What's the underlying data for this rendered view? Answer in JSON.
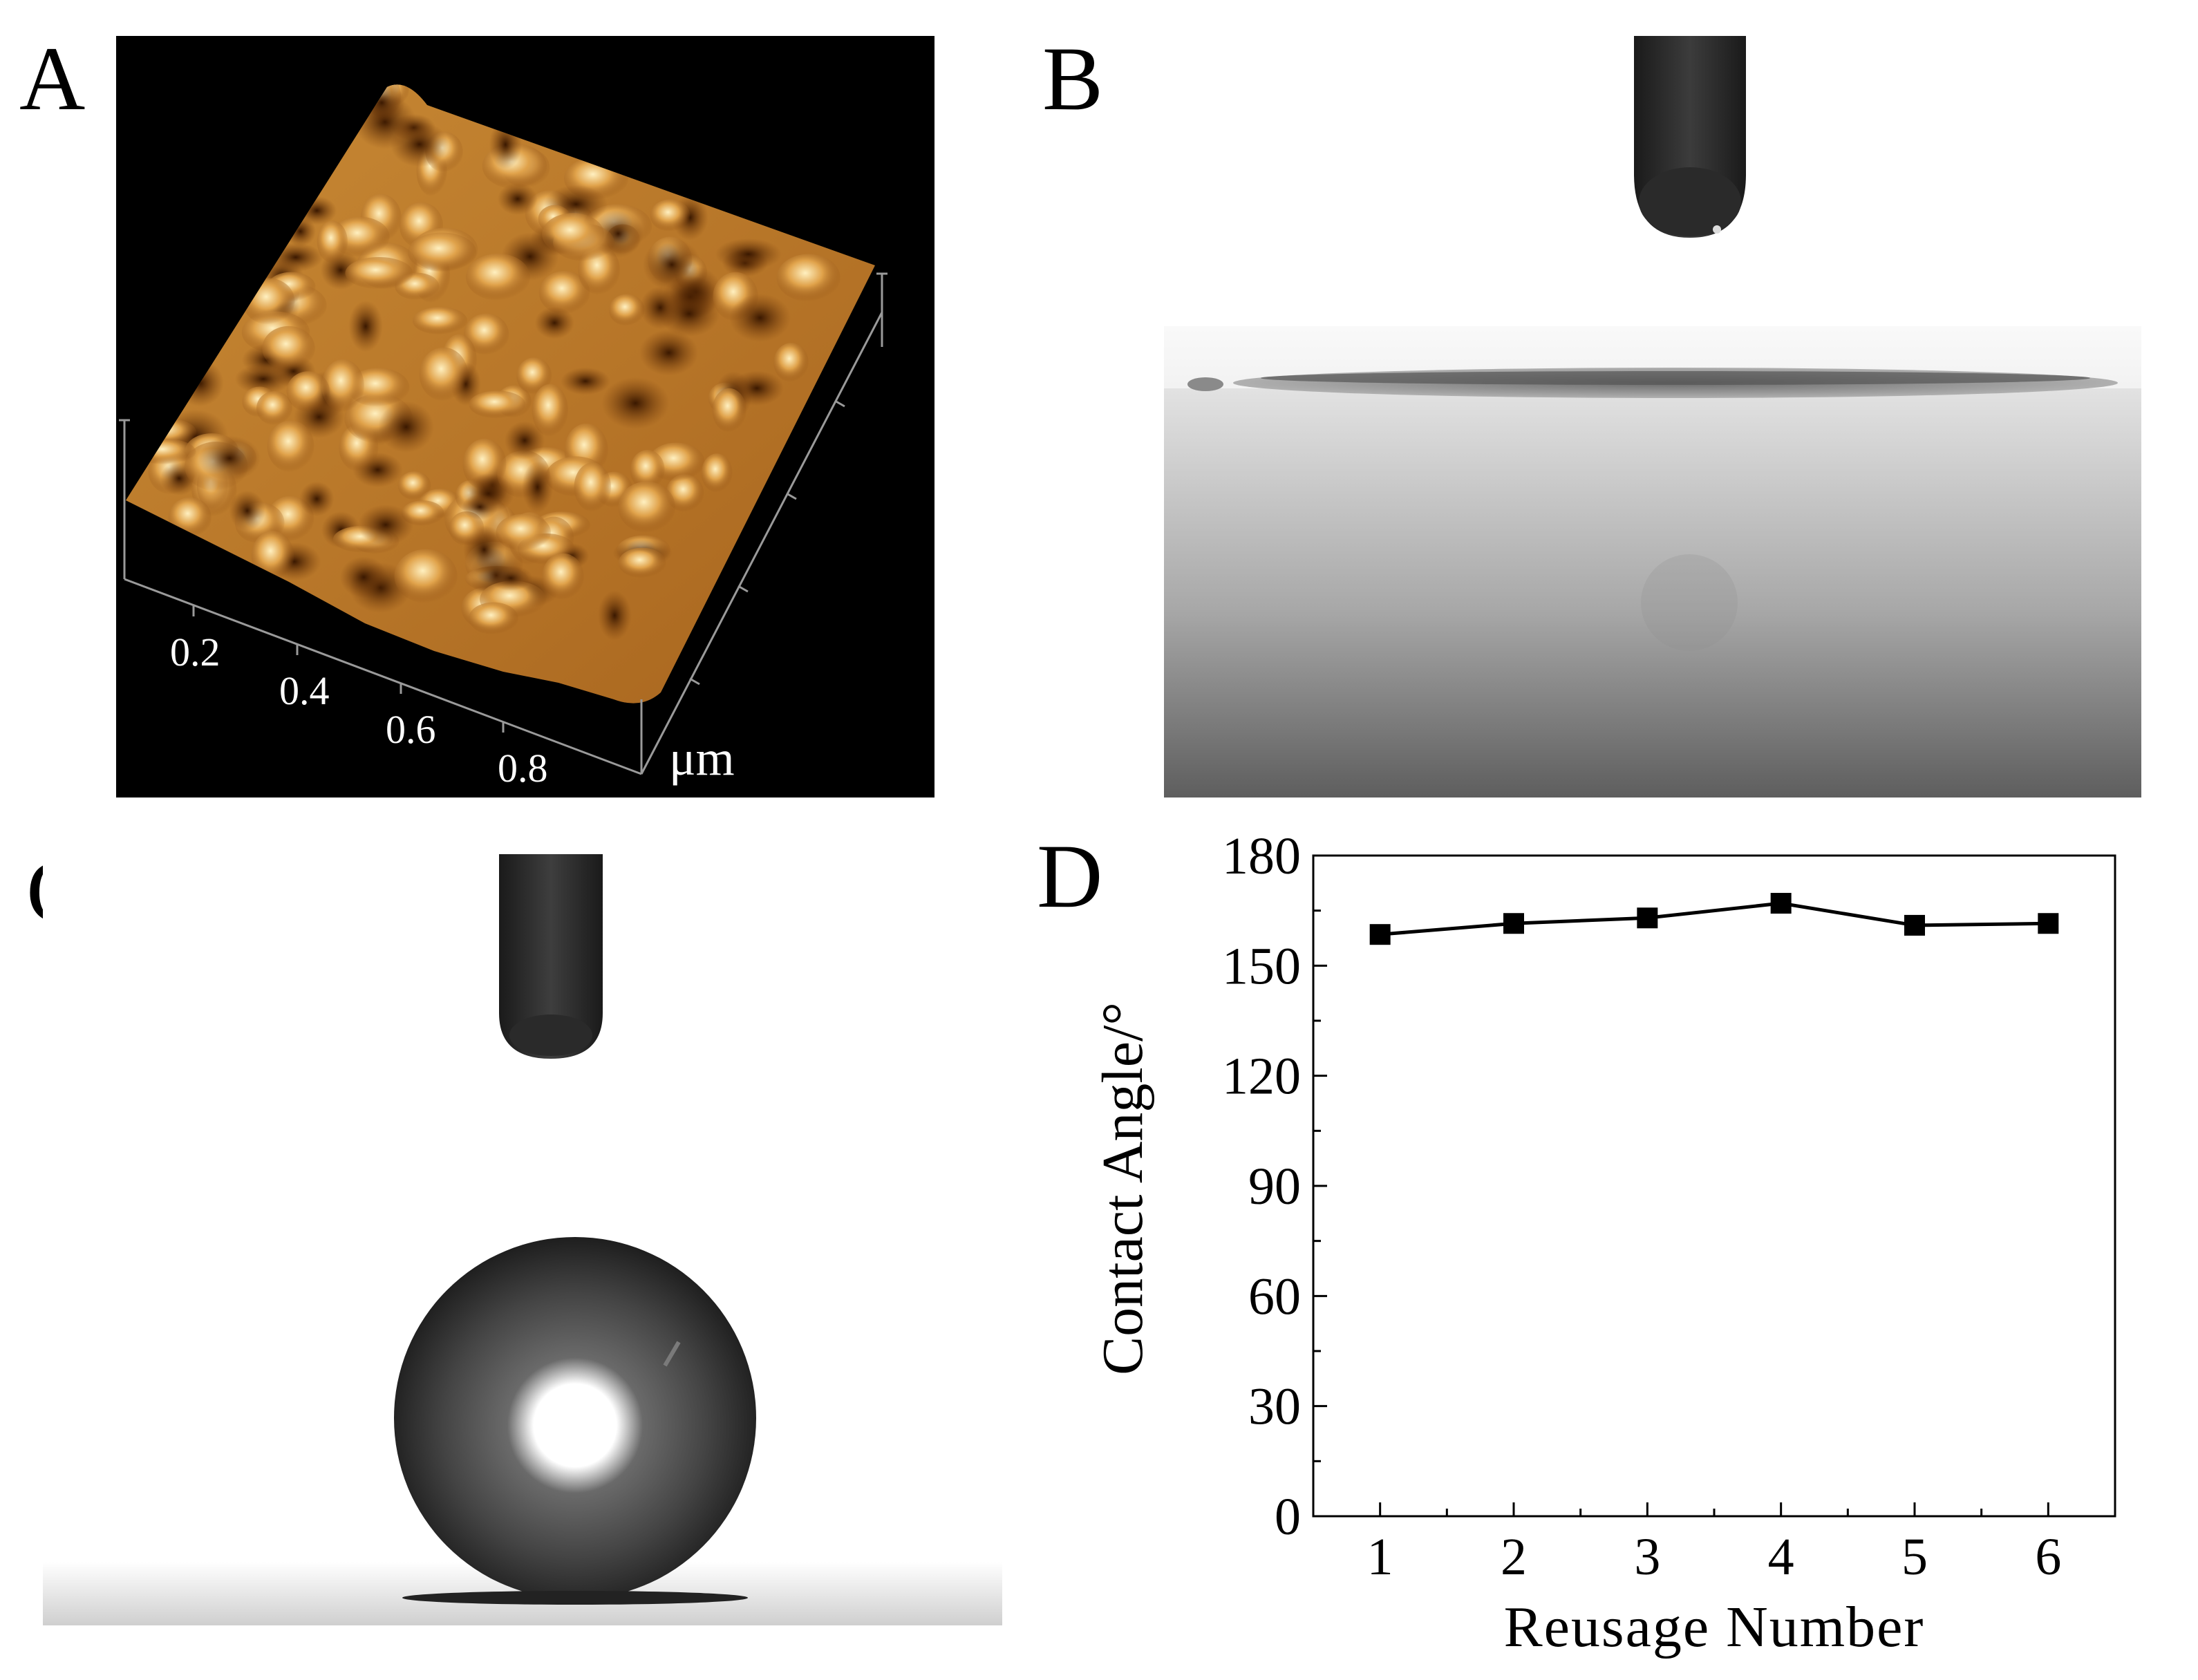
{
  "panels": {
    "a": {
      "letter": "A"
    },
    "b": {
      "letter": "B"
    },
    "c": {
      "letter": "C"
    },
    "d": {
      "letter": "D"
    }
  },
  "afm": {
    "ticks": [
      "0.2",
      "0.4",
      "0.6",
      "0.8"
    ],
    "unit": "μm",
    "colors": {
      "background": "#000000",
      "low": "#5a2a00",
      "mid": "#b8741f",
      "high": "#ffe6a8"
    }
  },
  "chart_data": {
    "type": "line",
    "xlabel": "Reusage Number",
    "ylabel": "Contact Angle/°",
    "x": [
      1,
      2,
      3,
      4,
      5,
      6
    ],
    "series": [
      {
        "values": [
          158.5,
          161.5,
          163,
          167,
          161,
          161.5
        ]
      }
    ],
    "xticks": [
      "1",
      "2",
      "3",
      "4",
      "5",
      "6"
    ],
    "yticks": [
      "0",
      "30",
      "60",
      "90",
      "120",
      "150",
      "180"
    ],
    "xlim": [
      0.5,
      6.5
    ],
    "ylim": [
      0,
      180
    ],
    "grid": false,
    "marker": "square",
    "color": "#000000"
  }
}
